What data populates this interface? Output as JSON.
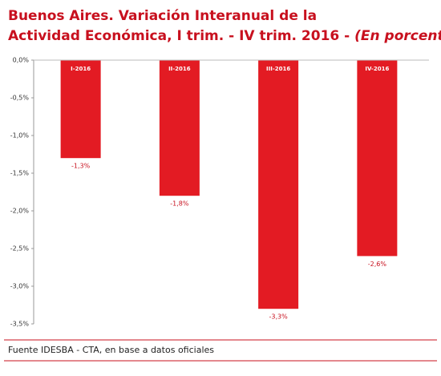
{
  "chart_data": {
    "type": "bar",
    "title_line1": "Buenos Aires. Variación Interanual de la",
    "title_line2": "Actividad Económica, I trim. - IV trim. 2016 -",
    "title_italic": "(En porcentajes)",
    "source": "Fuente IDESBA - CTA, en base a datos oficiales",
    "categories": [
      "I-2016",
      "II-2016",
      "III-2016",
      "IV-2016"
    ],
    "values": [
      -1.3,
      -1.8,
      -3.3,
      -2.6
    ],
    "value_labels": [
      "-1,3%",
      "-1,8%",
      "-3,3%",
      "-2,6%"
    ],
    "color": "#e31b23",
    "ylim": [
      -3.5,
      0
    ],
    "yticks": [
      {
        "value": 0,
        "label": "0,0%"
      },
      {
        "value": -0.5,
        "label": "-0,5%"
      },
      {
        "value": -1,
        "label": "-1,0%"
      },
      {
        "value": -1.5,
        "label": "-1,5%"
      },
      {
        "value": -2,
        "label": "-2,0%"
      },
      {
        "value": -2.5,
        "label": "-2,5%"
      },
      {
        "value": -3,
        "label": "-3,0%"
      },
      {
        "value": -3.5,
        "label": "-3,5%"
      }
    ]
  }
}
